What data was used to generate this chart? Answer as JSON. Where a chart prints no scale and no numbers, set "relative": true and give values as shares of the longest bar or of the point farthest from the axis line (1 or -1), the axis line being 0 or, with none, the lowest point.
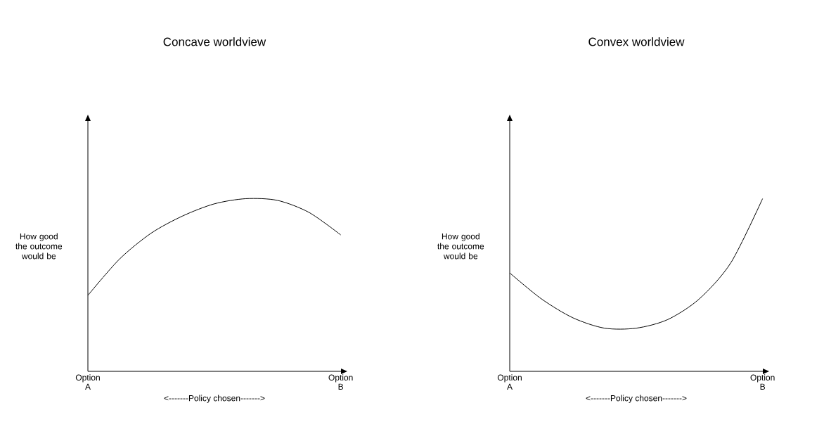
{
  "chart_data": [
    {
      "type": "line",
      "relative": true,
      "title": "Concave worldview",
      "xlabel": "<-------Policy chosen------->",
      "ylabel": "How good the outcome would be",
      "categories": [
        "Option A",
        null,
        null,
        null,
        null,
        null,
        null,
        null,
        "Option B"
      ],
      "series": [
        {
          "color": "#000000",
          "values": [
            0.44,
            0.65,
            0.8,
            0.9,
            0.97,
            1.0,
            0.99,
            0.92,
            0.79
          ]
        }
      ]
    },
    {
      "type": "line",
      "relative": true,
      "title": "Convex worldview",
      "xlabel": "<-------Policy chosen------->",
      "ylabel": "How good the outcome would be",
      "categories": [
        "Option A",
        null,
        null,
        null,
        null,
        null,
        null,
        null,
        "Option B"
      ],
      "series": [
        {
          "color": "#000000",
          "values": [
            0.57,
            0.42,
            0.31,
            0.25,
            0.25,
            0.3,
            0.42,
            0.63,
            1.0
          ]
        }
      ]
    }
  ]
}
